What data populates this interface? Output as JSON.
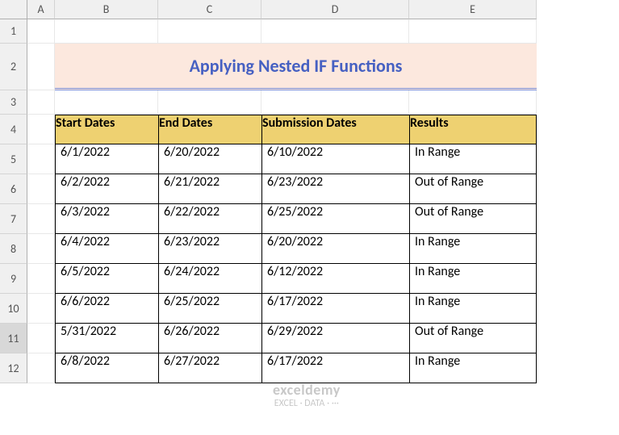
{
  "columns": [
    "A",
    "B",
    "C",
    "D",
    "E"
  ],
  "rows": [
    "1",
    "2",
    "3",
    "4",
    "5",
    "6",
    "7",
    "8",
    "9",
    "10",
    "11",
    "12"
  ],
  "selected_row": "11",
  "title": "Applying Nested IF Functions",
  "title_bg": "#fce8de",
  "title_color": "#4660c2",
  "header_bg": "#eed171",
  "headers": [
    "Start Dates",
    "End Dates",
    "Submission Dates",
    "Results"
  ],
  "data": [
    [
      "6/1/2022",
      "6/20/2022",
      "6/10/2022",
      "In Range"
    ],
    [
      "6/2/2022",
      "6/21/2022",
      "6/23/2022",
      "Out of Range"
    ],
    [
      "6/3/2022",
      "6/22/2022",
      "6/25/2022",
      "Out of Range"
    ],
    [
      "6/4/2022",
      "6/23/2022",
      "6/20/2022",
      "In Range"
    ],
    [
      "6/5/2022",
      "6/24/2022",
      "6/12/2022",
      "In Range"
    ],
    [
      "6/6/2022",
      "6/25/2022",
      "6/17/2022",
      "In Range"
    ],
    [
      "5/31/2022",
      "6/26/2022",
      "6/29/2022",
      "Out of Range"
    ],
    [
      "6/8/2022",
      "6/27/2022",
      "6/17/2022",
      "In Range"
    ]
  ],
  "watermark": {
    "line1": "exceldemy",
    "line2": "EXCEL · DATA · ···"
  }
}
